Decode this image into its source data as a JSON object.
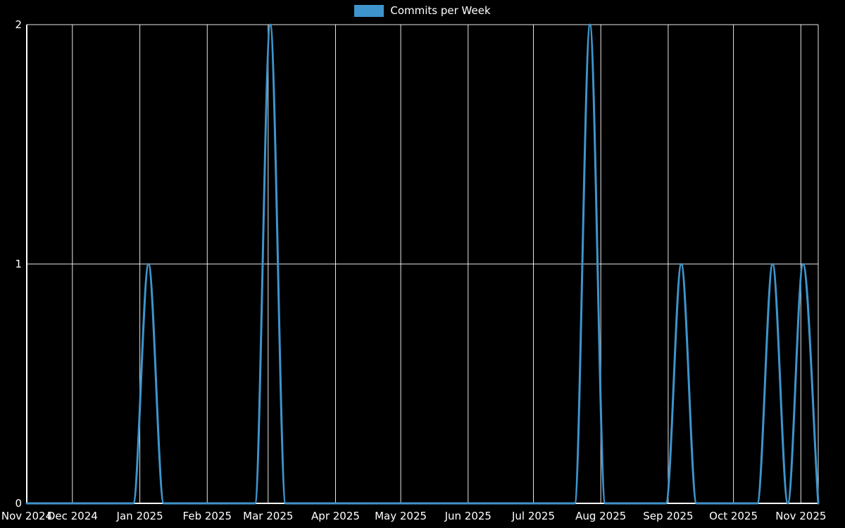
{
  "chart_data": {
    "type": "line",
    "title": "",
    "xlabel": "",
    "ylabel": "",
    "legend_label": "Commits per Week",
    "legend_position": "top-center",
    "background": "#000000",
    "line_color": "#3e95cd",
    "grid_color": "#ffffff",
    "axis_color": "#ffffff",
    "text_color": "#ffffff",
    "grid": true,
    "ylim": [
      0,
      2
    ],
    "yticks": [
      0,
      1,
      2
    ],
    "x_unit": "week_index",
    "total_days": 364,
    "x_ticks": [
      {
        "label": "Nov 2024",
        "day": 0
      },
      {
        "label": "Dec 2024",
        "day": 21
      },
      {
        "label": "Jan 2025",
        "day": 52
      },
      {
        "label": "Feb 2025",
        "day": 83
      },
      {
        "label": "Mar 2025",
        "day": 111
      },
      {
        "label": "Apr 2025",
        "day": 142
      },
      {
        "label": "May 2025",
        "day": 172
      },
      {
        "label": "Jun 2025",
        "day": 203
      },
      {
        "label": "Jul 2025",
        "day": 233
      },
      {
        "label": "Aug 2025",
        "day": 264
      },
      {
        "label": "Sep 2025",
        "day": 295
      },
      {
        "label": "Oct 2025",
        "day": 325
      },
      {
        "label": "Nov 2025",
        "day": 356
      }
    ],
    "series": [
      {
        "name": "Commits per Week",
        "values": [
          0,
          0,
          0,
          0,
          0,
          0,
          0,
          0,
          1,
          0,
          0,
          0,
          0,
          0,
          0,
          0,
          2,
          0,
          0,
          0,
          0,
          0,
          0,
          0,
          0,
          0,
          0,
          0,
          0,
          0,
          0,
          0,
          0,
          0,
          0,
          0,
          0,
          2,
          0,
          0,
          0,
          0,
          0,
          1,
          0,
          0,
          0,
          0,
          0,
          1,
          0,
          1,
          0
        ]
      }
    ]
  }
}
